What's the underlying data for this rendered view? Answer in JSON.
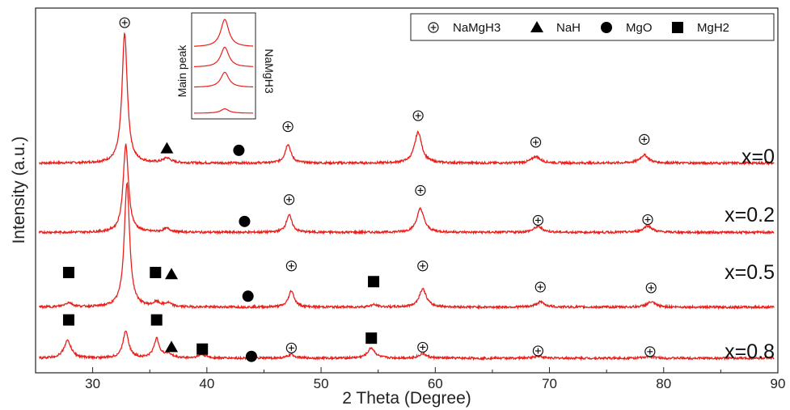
{
  "chart_data": {
    "type": "line",
    "title": "",
    "xlabel": "2 Theta (Degree)",
    "ylabel": "Intensity (a.u.)",
    "xlim": [
      25,
      90
    ],
    "x_ticks": [
      30,
      40,
      50,
      60,
      70,
      80,
      90
    ],
    "grid": false,
    "line_color": "#e8201c",
    "legend": {
      "placement": "top-right",
      "entries": [
        {
          "label": "NaMgH3",
          "marker": "circle-plus"
        },
        {
          "label": "NaH",
          "marker": "triangle"
        },
        {
          "label": "MgO",
          "marker": "circle"
        },
        {
          "label": "MgH2",
          "marker": "square"
        }
      ]
    },
    "series": [
      {
        "name": "x=0",
        "baseline": 0.575,
        "peaks": [
          {
            "x": 32.8,
            "height": 0.355,
            "width": 0.28
          },
          {
            "x": 36.5,
            "height": 0.013,
            "width": 0.4
          },
          {
            "x": 47.1,
            "height": 0.052,
            "width": 0.3
          },
          {
            "x": 58.5,
            "height": 0.085,
            "width": 0.38
          },
          {
            "x": 68.8,
            "height": 0.018,
            "width": 0.45
          },
          {
            "x": 78.3,
            "height": 0.022,
            "width": 0.45
          }
        ],
        "markers": [
          {
            "phase": "NaMgH3",
            "x": 32.8,
            "y": 0.96
          },
          {
            "phase": "NaH",
            "x": 36.5,
            "y": 0.615
          },
          {
            "phase": "MgO",
            "x": 42.8,
            "y": 0.61
          },
          {
            "phase": "NaMgH3",
            "x": 47.1,
            "y": 0.675
          },
          {
            "phase": "NaMgH3",
            "x": 58.5,
            "y": 0.705
          },
          {
            "phase": "NaMgH3",
            "x": 68.8,
            "y": 0.632
          },
          {
            "phase": "NaMgH3",
            "x": 78.3,
            "y": 0.64
          }
        ]
      },
      {
        "name": "x=0.2",
        "baseline": 0.385,
        "peaks": [
          {
            "x": 32.9,
            "height": 0.24,
            "width": 0.28
          },
          {
            "x": 36.5,
            "height": 0.01,
            "width": 0.4
          },
          {
            "x": 47.2,
            "height": 0.048,
            "width": 0.3
          },
          {
            "x": 58.7,
            "height": 0.065,
            "width": 0.38
          },
          {
            "x": 69.0,
            "height": 0.016,
            "width": 0.45
          },
          {
            "x": 78.6,
            "height": 0.018,
            "width": 0.45
          }
        ],
        "markers": [
          {
            "phase": "MgO",
            "x": 43.3,
            "y": 0.415
          },
          {
            "phase": "NaMgH3",
            "x": 47.2,
            "y": 0.475
          },
          {
            "phase": "NaMgH3",
            "x": 58.7,
            "y": 0.5
          },
          {
            "phase": "NaMgH3",
            "x": 69.0,
            "y": 0.418
          },
          {
            "phase": "NaMgH3",
            "x": 78.6,
            "y": 0.42
          }
        ]
      },
      {
        "name": "x=0.5",
        "baseline": 0.18,
        "peaks": [
          {
            "x": 27.9,
            "height": 0.012,
            "width": 0.4
          },
          {
            "x": 33.0,
            "height": 0.34,
            "width": 0.28
          },
          {
            "x": 35.6,
            "height": 0.012,
            "width": 0.35
          },
          {
            "x": 36.6,
            "height": 0.01,
            "width": 0.35
          },
          {
            "x": 47.4,
            "height": 0.045,
            "width": 0.3
          },
          {
            "x": 54.6,
            "height": 0.006,
            "width": 0.4
          },
          {
            "x": 58.9,
            "height": 0.05,
            "width": 0.38
          },
          {
            "x": 69.2,
            "height": 0.014,
            "width": 0.45
          },
          {
            "x": 78.9,
            "height": 0.014,
            "width": 0.45
          }
        ],
        "markers": [
          {
            "phase": "MgH2",
            "x": 27.9,
            "y": 0.275
          },
          {
            "phase": "MgH2",
            "x": 35.5,
            "y": 0.275
          },
          {
            "phase": "NaH",
            "x": 36.9,
            "y": 0.27
          },
          {
            "phase": "MgO",
            "x": 43.6,
            "y": 0.21
          },
          {
            "phase": "NaMgH3",
            "x": 47.4,
            "y": 0.293
          },
          {
            "phase": "MgH2",
            "x": 54.6,
            "y": 0.25
          },
          {
            "phase": "NaMgH3",
            "x": 58.9,
            "y": 0.293
          },
          {
            "phase": "NaMgH3",
            "x": 69.2,
            "y": 0.235
          },
          {
            "phase": "NaMgH3",
            "x": 78.9,
            "y": 0.233
          }
        ]
      },
      {
        "name": "x=0.8",
        "baseline": 0.04,
        "peaks": [
          {
            "x": 27.8,
            "height": 0.048,
            "width": 0.38
          },
          {
            "x": 32.9,
            "height": 0.075,
            "width": 0.3
          },
          {
            "x": 35.6,
            "height": 0.052,
            "width": 0.3
          },
          {
            "x": 36.6,
            "height": 0.012,
            "width": 0.35
          },
          {
            "x": 39.6,
            "height": 0.01,
            "width": 0.4
          },
          {
            "x": 47.4,
            "height": 0.01,
            "width": 0.35
          },
          {
            "x": 54.4,
            "height": 0.028,
            "width": 0.38
          },
          {
            "x": 58.9,
            "height": 0.012,
            "width": 0.4
          },
          {
            "x": 69.0,
            "height": 0.006,
            "width": 0.45
          },
          {
            "x": 78.8,
            "height": 0.005,
            "width": 0.45
          }
        ],
        "markers": [
          {
            "phase": "MgH2",
            "x": 27.9,
            "y": 0.145
          },
          {
            "phase": "MgH2",
            "x": 35.6,
            "y": 0.145
          },
          {
            "phase": "NaH",
            "x": 36.9,
            "y": 0.07
          },
          {
            "phase": "MgH2",
            "x": 39.6,
            "y": 0.065
          },
          {
            "phase": "MgO",
            "x": 43.9,
            "y": 0.045
          },
          {
            "phase": "NaMgH3",
            "x": 47.4,
            "y": 0.068
          },
          {
            "phase": "MgH2",
            "x": 54.4,
            "y": 0.095
          },
          {
            "phase": "NaMgH3",
            "x": 58.9,
            "y": 0.07
          },
          {
            "phase": "NaMgH3",
            "x": 69.0,
            "y": 0.06
          },
          {
            "phase": "NaMgH3",
            "x": 78.8,
            "y": 0.058
          }
        ]
      }
    ],
    "inset": {
      "left_label": "Main peak",
      "right_label": "NaMgH3",
      "traces": 4
    }
  }
}
